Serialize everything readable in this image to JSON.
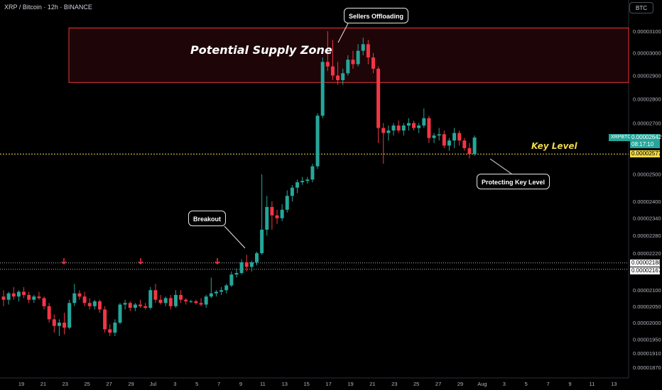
{
  "header": {
    "title": "XRP / Bitcoin · 12h · BINANCE",
    "currency_button": "BTC"
  },
  "annotations": {
    "supply_zone": "Potential Supply Zone",
    "key_level": "Key Level",
    "sellers": "Sellers Offloading",
    "breakout": "Breakout",
    "protecting": "Protecting Key Level"
  },
  "price_tags": {
    "symbol": "XRPBTC",
    "last_price": "0.00002642",
    "countdown": "08:17:10",
    "key_level": "0.00002577",
    "res_high": "0.00002188",
    "res_low": "0.00002167"
  },
  "colors": {
    "up": "#26a69a",
    "down": "#f23645",
    "supply_border": "#e53935",
    "supply_fill": "#1e0508",
    "key": "#f0d94a"
  },
  "chart_data": {
    "type": "candlestick",
    "symbol": "XRPBTC",
    "interval": "12h",
    "y_scale": "log",
    "y_ticks": [
      "0.00003100",
      "0.00003000",
      "0.00002900",
      "0.00002800",
      "0.00002700",
      "0.00002500",
      "0.00002400",
      "0.00002340",
      "0.00002280",
      "0.00002220",
      "0.00002100",
      "0.00002050",
      "0.00002000",
      "0.00001950",
      "0.00001910",
      "0.00001870"
    ],
    "x_ticks": [
      "19",
      "21",
      "23",
      "25",
      "27",
      "29",
      "Jul",
      "3",
      "5",
      "7",
      "9",
      "11",
      "13",
      "15",
      "17",
      "19",
      "21",
      "23",
      "25",
      "27",
      "29",
      "Aug",
      "3",
      "5",
      "7",
      "9",
      "11",
      "13"
    ],
    "supply_zone": [
      2.87e-05,
      3.115e-05
    ],
    "key_level": 2.577e-05,
    "resistance_lines": [
      2.188e-05,
      2.167e-05
    ],
    "candles": [
      {
        "o": 2080,
        "h": 2100,
        "l": 2050,
        "c": 2070
      },
      {
        "o": 2070,
        "h": 2095,
        "l": 2055,
        "c": 2090
      },
      {
        "o": 2090,
        "h": 2110,
        "l": 2070,
        "c": 2080
      },
      {
        "o": 2080,
        "h": 2100,
        "l": 2065,
        "c": 2095
      },
      {
        "o": 2095,
        "h": 2110,
        "l": 2075,
        "c": 2085
      },
      {
        "o": 2085,
        "h": 2095,
        "l": 2060,
        "c": 2070
      },
      {
        "o": 2070,
        "h": 2085,
        "l": 2060,
        "c": 2080
      },
      {
        "o": 2080,
        "h": 2095,
        "l": 2070,
        "c": 2075
      },
      {
        "o": 2075,
        "h": 2080,
        "l": 2040,
        "c": 2050
      },
      {
        "o": 2050,
        "h": 2060,
        "l": 2000,
        "c": 2010
      },
      {
        "o": 2010,
        "h": 2025,
        "l": 1970,
        "c": 1990
      },
      {
        "o": 1990,
        "h": 2010,
        "l": 1960,
        "c": 2000
      },
      {
        "o": 2000,
        "h": 2030,
        "l": 1965,
        "c": 1985
      },
      {
        "o": 1985,
        "h": 2070,
        "l": 1980,
        "c": 2060
      },
      {
        "o": 2060,
        "h": 2120,
        "l": 2050,
        "c": 2090
      },
      {
        "o": 2090,
        "h": 2100,
        "l": 2070,
        "c": 2080
      },
      {
        "o": 2080,
        "h": 2095,
        "l": 2050,
        "c": 2060
      },
      {
        "o": 2060,
        "h": 2075,
        "l": 2040,
        "c": 2050
      },
      {
        "o": 2050,
        "h": 2070,
        "l": 2040,
        "c": 2065
      },
      {
        "o": 2065,
        "h": 2070,
        "l": 2030,
        "c": 2040
      },
      {
        "o": 2040,
        "h": 2050,
        "l": 1970,
        "c": 1980
      },
      {
        "o": 1980,
        "h": 1995,
        "l": 1960,
        "c": 1970
      },
      {
        "o": 1970,
        "h": 2010,
        "l": 1960,
        "c": 2000
      },
      {
        "o": 2000,
        "h": 2060,
        "l": 1995,
        "c": 2055
      },
      {
        "o": 2055,
        "h": 2070,
        "l": 2040,
        "c": 2060
      },
      {
        "o": 2060,
        "h": 2065,
        "l": 2035,
        "c": 2045
      },
      {
        "o": 2045,
        "h": 2060,
        "l": 2035,
        "c": 2055
      },
      {
        "o": 2055,
        "h": 2070,
        "l": 2045,
        "c": 2050
      },
      {
        "o": 2050,
        "h": 2060,
        "l": 2040,
        "c": 2045
      },
      {
        "o": 2045,
        "h": 2110,
        "l": 2040,
        "c": 2100
      },
      {
        "o": 2100,
        "h": 2120,
        "l": 2060,
        "c": 2070
      },
      {
        "o": 2070,
        "h": 2085,
        "l": 2055,
        "c": 2060
      },
      {
        "o": 2060,
        "h": 2080,
        "l": 2050,
        "c": 2075
      },
      {
        "o": 2075,
        "h": 2085,
        "l": 2040,
        "c": 2050
      },
      {
        "o": 2050,
        "h": 2100,
        "l": 2045,
        "c": 2085
      },
      {
        "o": 2085,
        "h": 2100,
        "l": 2060,
        "c": 2070
      },
      {
        "o": 2070,
        "h": 2075,
        "l": 2055,
        "c": 2065
      },
      {
        "o": 2065,
        "h": 2070,
        "l": 2060,
        "c": 2065
      },
      {
        "o": 2065,
        "h": 2070,
        "l": 2055,
        "c": 2060
      },
      {
        "o": 2060,
        "h": 2075,
        "l": 2050,
        "c": 2055
      },
      {
        "o": 2055,
        "h": 2085,
        "l": 2045,
        "c": 2080
      },
      {
        "o": 2080,
        "h": 2140,
        "l": 2075,
        "c": 2090
      },
      {
        "o": 2090,
        "h": 2100,
        "l": 2080,
        "c": 2095
      },
      {
        "o": 2095,
        "h": 2110,
        "l": 2085,
        "c": 2100
      },
      {
        "o": 2100,
        "h": 2120,
        "l": 2090,
        "c": 2115
      },
      {
        "o": 2115,
        "h": 2160,
        "l": 2110,
        "c": 2150
      },
      {
        "o": 2150,
        "h": 2170,
        "l": 2140,
        "c": 2155
      },
      {
        "o": 2155,
        "h": 2200,
        "l": 2150,
        "c": 2190
      },
      {
        "o": 2190,
        "h": 2215,
        "l": 2160,
        "c": 2175
      },
      {
        "o": 2175,
        "h": 2195,
        "l": 2160,
        "c": 2190
      },
      {
        "o": 2190,
        "h": 2225,
        "l": 2180,
        "c": 2220
      },
      {
        "o": 2220,
        "h": 2500,
        "l": 2215,
        "c": 2300
      },
      {
        "o": 2300,
        "h": 2420,
        "l": 2280,
        "c": 2380
      },
      {
        "o": 2380,
        "h": 2400,
        "l": 2300,
        "c": 2350
      },
      {
        "o": 2350,
        "h": 2370,
        "l": 2320,
        "c": 2340
      },
      {
        "o": 2340,
        "h": 2390,
        "l": 2330,
        "c": 2370
      },
      {
        "o": 2370,
        "h": 2440,
        "l": 2360,
        "c": 2420
      },
      {
        "o": 2420,
        "h": 2460,
        "l": 2400,
        "c": 2450
      },
      {
        "o": 2450,
        "h": 2480,
        "l": 2430,
        "c": 2470
      },
      {
        "o": 2470,
        "h": 2490,
        "l": 2460,
        "c": 2475
      },
      {
        "o": 2475,
        "h": 2490,
        "l": 2465,
        "c": 2480
      },
      {
        "o": 2480,
        "h": 2540,
        "l": 2470,
        "c": 2530
      },
      {
        "o": 2530,
        "h": 2740,
        "l": 2520,
        "c": 2730
      },
      {
        "o": 2730,
        "h": 2980,
        "l": 2720,
        "c": 2960
      },
      {
        "o": 2960,
        "h": 3100,
        "l": 2920,
        "c": 2940
      },
      {
        "o": 2940,
        "h": 3060,
        "l": 2880,
        "c": 2900
      },
      {
        "o": 2900,
        "h": 2960,
        "l": 2860,
        "c": 2880
      },
      {
        "o": 2880,
        "h": 2930,
        "l": 2860,
        "c": 2910
      },
      {
        "o": 2910,
        "h": 2990,
        "l": 2900,
        "c": 2970
      },
      {
        "o": 2970,
        "h": 3010,
        "l": 2930,
        "c": 2950
      },
      {
        "o": 2950,
        "h": 3040,
        "l": 2940,
        "c": 3010
      },
      {
        "o": 3010,
        "h": 3070,
        "l": 2990,
        "c": 3040
      },
      {
        "o": 3040,
        "h": 3060,
        "l": 2950,
        "c": 2980
      },
      {
        "o": 2980,
        "h": 3000,
        "l": 2910,
        "c": 2930
      },
      {
        "o": 2930,
        "h": 2940,
        "l": 2620,
        "c": 2680
      },
      {
        "o": 2680,
        "h": 2700,
        "l": 2540,
        "c": 2660
      },
      {
        "o": 2660,
        "h": 2690,
        "l": 2630,
        "c": 2670
      },
      {
        "o": 2670,
        "h": 2700,
        "l": 2650,
        "c": 2690
      },
      {
        "o": 2690,
        "h": 2710,
        "l": 2660,
        "c": 2670
      },
      {
        "o": 2670,
        "h": 2700,
        "l": 2650,
        "c": 2690
      },
      {
        "o": 2690,
        "h": 2720,
        "l": 2670,
        "c": 2700
      },
      {
        "o": 2700,
        "h": 2710,
        "l": 2670,
        "c": 2680
      },
      {
        "o": 2680,
        "h": 2700,
        "l": 2660,
        "c": 2690
      },
      {
        "o": 2690,
        "h": 2760,
        "l": 2680,
        "c": 2720
      },
      {
        "o": 2720,
        "h": 2730,
        "l": 2620,
        "c": 2640
      },
      {
        "o": 2640,
        "h": 2660,
        "l": 2620,
        "c": 2650
      },
      {
        "o": 2650,
        "h": 2680,
        "l": 2630,
        "c": 2655
      },
      {
        "o": 2655,
        "h": 2670,
        "l": 2600,
        "c": 2610
      },
      {
        "o": 2610,
        "h": 2640,
        "l": 2590,
        "c": 2630
      },
      {
        "o": 2630,
        "h": 2680,
        "l": 2600,
        "c": 2660
      },
      {
        "o": 2660,
        "h": 2670,
        "l": 2610,
        "c": 2630
      },
      {
        "o": 2630,
        "h": 2640,
        "l": 2590,
        "c": 2600
      },
      {
        "o": 2600,
        "h": 2620,
        "l": 2560,
        "c": 2577
      },
      {
        "o": 2577,
        "h": 2650,
        "l": 2570,
        "c": 2642
      }
    ]
  }
}
